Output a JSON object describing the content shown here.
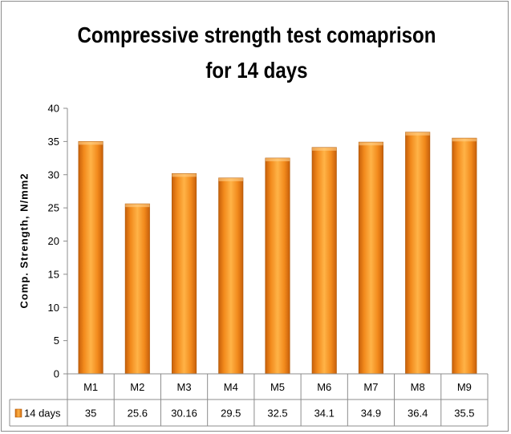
{
  "chart_data": {
    "type": "bar",
    "title": "Compressive strength test comaprison for 14 days",
    "ylabel": "Comp. Strength, N/mm2",
    "xlabel": "",
    "categories": [
      "M1",
      "M2",
      "M3",
      "M4",
      "M5",
      "M6",
      "M7",
      "M8",
      "M9"
    ],
    "series": [
      {
        "name": "14 days",
        "values": [
          35,
          25.6,
          30.16,
          29.5,
          32.5,
          34.1,
          34.9,
          36.4,
          35.5
        ],
        "labels": [
          "35",
          "25.6",
          "30.16",
          "29.5",
          "32.5",
          "34.1",
          "34.9",
          "36.4",
          "35.5"
        ],
        "color": "#f7931e"
      }
    ],
    "ylim": [
      0,
      40
    ],
    "yticks": [
      "0",
      "5",
      "10",
      "15",
      "20",
      "25",
      "30",
      "35",
      "40"
    ],
    "grid": false,
    "legend": "data-table-left"
  }
}
